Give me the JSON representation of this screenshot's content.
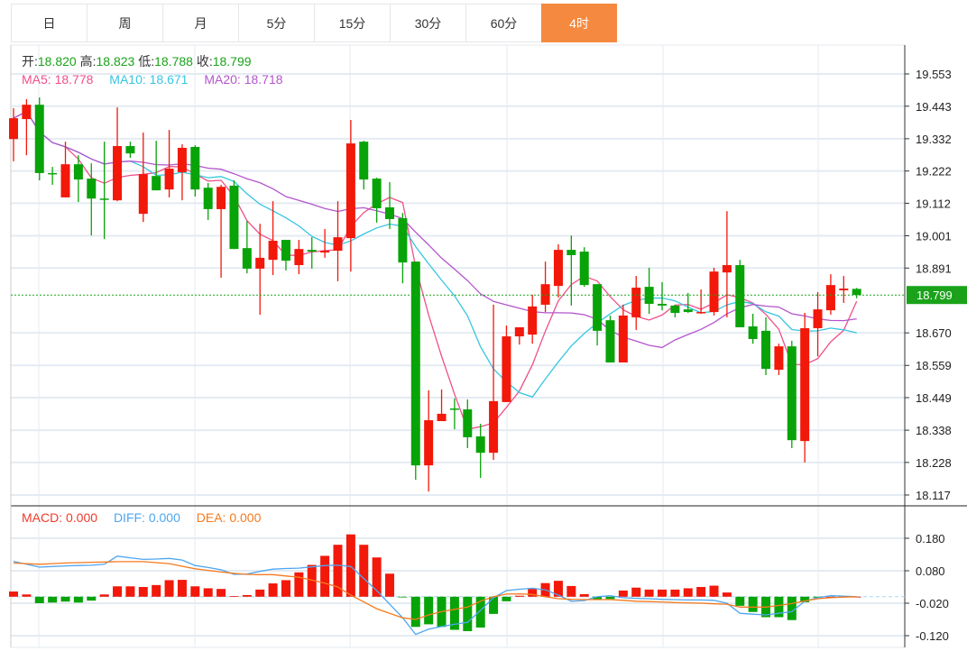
{
  "tabs": [
    {
      "label": "日",
      "active": false
    },
    {
      "label": "周",
      "active": false
    },
    {
      "label": "月",
      "active": false
    },
    {
      "label": "5分",
      "active": false
    },
    {
      "label": "15分",
      "active": false
    },
    {
      "label": "30分",
      "active": false
    },
    {
      "label": "60分",
      "active": false
    },
    {
      "label": "4时",
      "active": true
    }
  ],
  "ohlc_header": {
    "open_label": "开:",
    "open": "18.820",
    "high_label": "高:",
    "high": "18.823",
    "low_label": "低:",
    "low": "18.788",
    "close_label": "收:",
    "close": "18.799"
  },
  "ma_header": {
    "ma5": "MA5: 18.778",
    "ma10": "MA10: 18.671",
    "ma20": "MA20: 18.718"
  },
  "macd_header": {
    "macd": "MACD: 0.000",
    "diff": "DIFF: 0.000",
    "dea": "DEA: 0.000"
  },
  "current_price_label": "18.799",
  "colors": {
    "up": "#f2180a",
    "down": "#08a308",
    "ma5": "#f0508a",
    "ma10": "#36c6e0",
    "ma20": "#b455cc",
    "diff": "#4ea6f0",
    "dea": "#f57a1e",
    "accent": "#f5893f",
    "current": "#1aa31a"
  },
  "chart_data": [
    {
      "type": "candlestick",
      "title": "4时 K线",
      "ylim": [
        18.117,
        19.553
      ],
      "y_ticks": [
        "19.553",
        "19.443",
        "19.332",
        "19.222",
        "19.112",
        "19.001",
        "18.891",
        "18.670",
        "18.559",
        "18.449",
        "18.338",
        "18.228",
        "18.117"
      ],
      "current_price": 18.799,
      "ma_periods": [
        5,
        10,
        20
      ],
      "open": [
        19.331,
        19.399,
        19.448,
        19.215,
        19.132,
        19.245,
        19.196,
        19.128,
        19.122,
        19.307,
        19.076,
        19.205,
        19.159,
        19.218,
        19.304,
        19.165,
        19.092,
        19.172,
        18.959,
        18.889,
        18.919,
        18.987,
        18.901,
        18.953,
        18.944,
        18.95,
        18.993,
        19.322,
        19.196,
        19.098,
        19.061,
        18.913,
        18.218,
        18.369,
        18.412,
        18.409,
        18.317,
        18.261,
        18.434,
        18.658,
        18.664,
        18.766,
        18.83,
        18.953,
        18.947,
        18.836,
        18.713,
        18.569,
        18.723,
        18.827,
        18.769,
        18.763,
        18.75,
        18.738,
        18.741,
        18.876,
        18.901,
        18.692,
        18.677,
        18.544,
        18.624,
        18.301,
        18.686,
        18.747,
        18.815,
        18.82
      ],
      "high": [
        19.436,
        19.467,
        19.473,
        19.236,
        19.322,
        19.276,
        19.248,
        19.322,
        19.439,
        19.322,
        19.353,
        19.325,
        19.362,
        19.313,
        19.31,
        19.181,
        19.175,
        19.19,
        19.052,
        19.042,
        19.119,
        18.987,
        18.987,
        18.996,
        19.024,
        19.119,
        19.396,
        19.325,
        19.199,
        19.184,
        19.079,
        18.913,
        18.474,
        18.477,
        18.446,
        18.443,
        18.36,
        18.766,
        18.695,
        18.689,
        18.8,
        18.913,
        18.972,
        19.002,
        18.962,
        18.836,
        18.729,
        18.766,
        18.864,
        18.892,
        18.843,
        18.766,
        18.806,
        18.818,
        18.892,
        19.085,
        18.919,
        18.735,
        18.723,
        18.633,
        18.643,
        18.738,
        18.809,
        18.87,
        18.864,
        18.823
      ],
      "low": [
        19.255,
        19.276,
        19.19,
        19.175,
        19.132,
        19.116,
        19.002,
        18.99,
        19.119,
        19.267,
        19.048,
        19.156,
        19.132,
        19.122,
        19.135,
        19.055,
        18.858,
        18.956,
        18.873,
        18.732,
        18.867,
        18.883,
        18.87,
        18.889,
        18.926,
        18.846,
        18.879,
        19.159,
        19.046,
        19.024,
        18.839,
        18.169,
        18.129,
        18.369,
        18.341,
        18.277,
        18.175,
        18.237,
        18.434,
        18.63,
        18.633,
        18.741,
        18.79,
        18.763,
        18.827,
        18.627,
        18.569,
        18.569,
        18.68,
        18.735,
        18.747,
        18.723,
        18.738,
        18.735,
        18.729,
        18.723,
        18.689,
        18.633,
        18.526,
        18.526,
        18.277,
        18.228,
        18.59,
        18.732,
        18.772,
        18.788
      ],
      "close": [
        19.402,
        19.448,
        19.215,
        19.211,
        19.245,
        19.193,
        19.128,
        19.125,
        19.307,
        19.282,
        19.211,
        19.156,
        19.23,
        19.301,
        19.159,
        19.092,
        19.168,
        18.956,
        18.889,
        18.926,
        18.984,
        18.916,
        18.956,
        18.947,
        18.95,
        18.996,
        19.316,
        19.193,
        19.095,
        19.058,
        18.91,
        18.218,
        18.372,
        18.394,
        18.409,
        18.314,
        18.261,
        18.437,
        18.658,
        18.689,
        18.76,
        18.836,
        18.953,
        18.935,
        18.833,
        18.677,
        18.569,
        18.729,
        18.824,
        18.769,
        18.763,
        18.738,
        18.741,
        18.741,
        18.879,
        18.901,
        18.689,
        18.649,
        18.547,
        18.624,
        18.304,
        18.686,
        18.75,
        18.833,
        18.821,
        18.799
      ]
    },
    {
      "type": "bar+line",
      "title": "MACD",
      "ylim": [
        -0.14,
        0.2
      ],
      "y_ticks": [
        "0.180",
        "0.080",
        "-0.020",
        "-0.120"
      ],
      "macd": [
        0.016,
        0.007,
        -0.02,
        -0.018,
        -0.015,
        -0.018,
        -0.012,
        0.007,
        0.032,
        0.032,
        0.03,
        0.036,
        0.051,
        0.052,
        0.032,
        0.026,
        0.024,
        0.002,
        0.005,
        0.022,
        0.041,
        0.051,
        0.075,
        0.098,
        0.126,
        0.16,
        0.192,
        0.16,
        0.121,
        0.071,
        -0.001,
        -0.093,
        -0.085,
        -0.093,
        -0.102,
        -0.106,
        -0.095,
        -0.053,
        -0.014,
        0.003,
        0.024,
        0.042,
        0.049,
        0.033,
        0.008,
        -0.009,
        -0.007,
        0.019,
        0.028,
        0.022,
        0.022,
        0.022,
        0.026,
        0.03,
        0.034,
        0.013,
        -0.028,
        -0.047,
        -0.063,
        -0.063,
        -0.072,
        -0.017,
        -0.003,
        0,
        0,
        0
      ],
      "diff": [
        0.109,
        0.1,
        0.091,
        0.093,
        0.095,
        0.096,
        0.097,
        0.1,
        0.125,
        0.12,
        0.115,
        0.116,
        0.118,
        0.113,
        0.096,
        0.09,
        0.083,
        0.069,
        0.07,
        0.078,
        0.085,
        0.087,
        0.088,
        0.092,
        0.096,
        0.097,
        0.093,
        0.056,
        0.019,
        -0.023,
        -0.065,
        -0.116,
        -0.1,
        -0.092,
        -0.085,
        -0.079,
        -0.042,
        -0.003,
        0.019,
        0.023,
        0.026,
        0.021,
        0.005,
        -0.014,
        -0.012,
        0.0,
        0.003,
        -0.003,
        -0.005,
        -0.006,
        -0.008,
        -0.009,
        -0.01,
        -0.01,
        -0.011,
        -0.02,
        -0.051,
        -0.054,
        -0.056,
        -0.051,
        -0.046,
        -0.014,
        -0.003,
        0.003,
        0.002,
        0.0
      ],
      "dea": [
        0.104,
        0.102,
        0.1,
        0.102,
        0.104,
        0.105,
        0.106,
        0.107,
        0.108,
        0.108,
        0.108,
        0.105,
        0.102,
        0.094,
        0.086,
        0.081,
        0.076,
        0.072,
        0.069,
        0.068,
        0.068,
        0.064,
        0.06,
        0.051,
        0.042,
        0.03,
        0.005,
        -0.016,
        -0.037,
        -0.051,
        -0.065,
        -0.07,
        -0.056,
        -0.046,
        -0.039,
        -0.032,
        -0.014,
        0.0,
        0.008,
        0.009,
        0.007,
        0.0,
        -0.006,
        -0.008,
        -0.009,
        -0.009,
        -0.009,
        -0.011,
        -0.014,
        -0.015,
        -0.016,
        -0.018,
        -0.019,
        -0.02,
        -0.022,
        -0.023,
        -0.032,
        -0.032,
        -0.032,
        -0.027,
        -0.021,
        -0.013,
        -0.006,
        -0.003,
        -0.001,
        0.0
      ]
    }
  ]
}
